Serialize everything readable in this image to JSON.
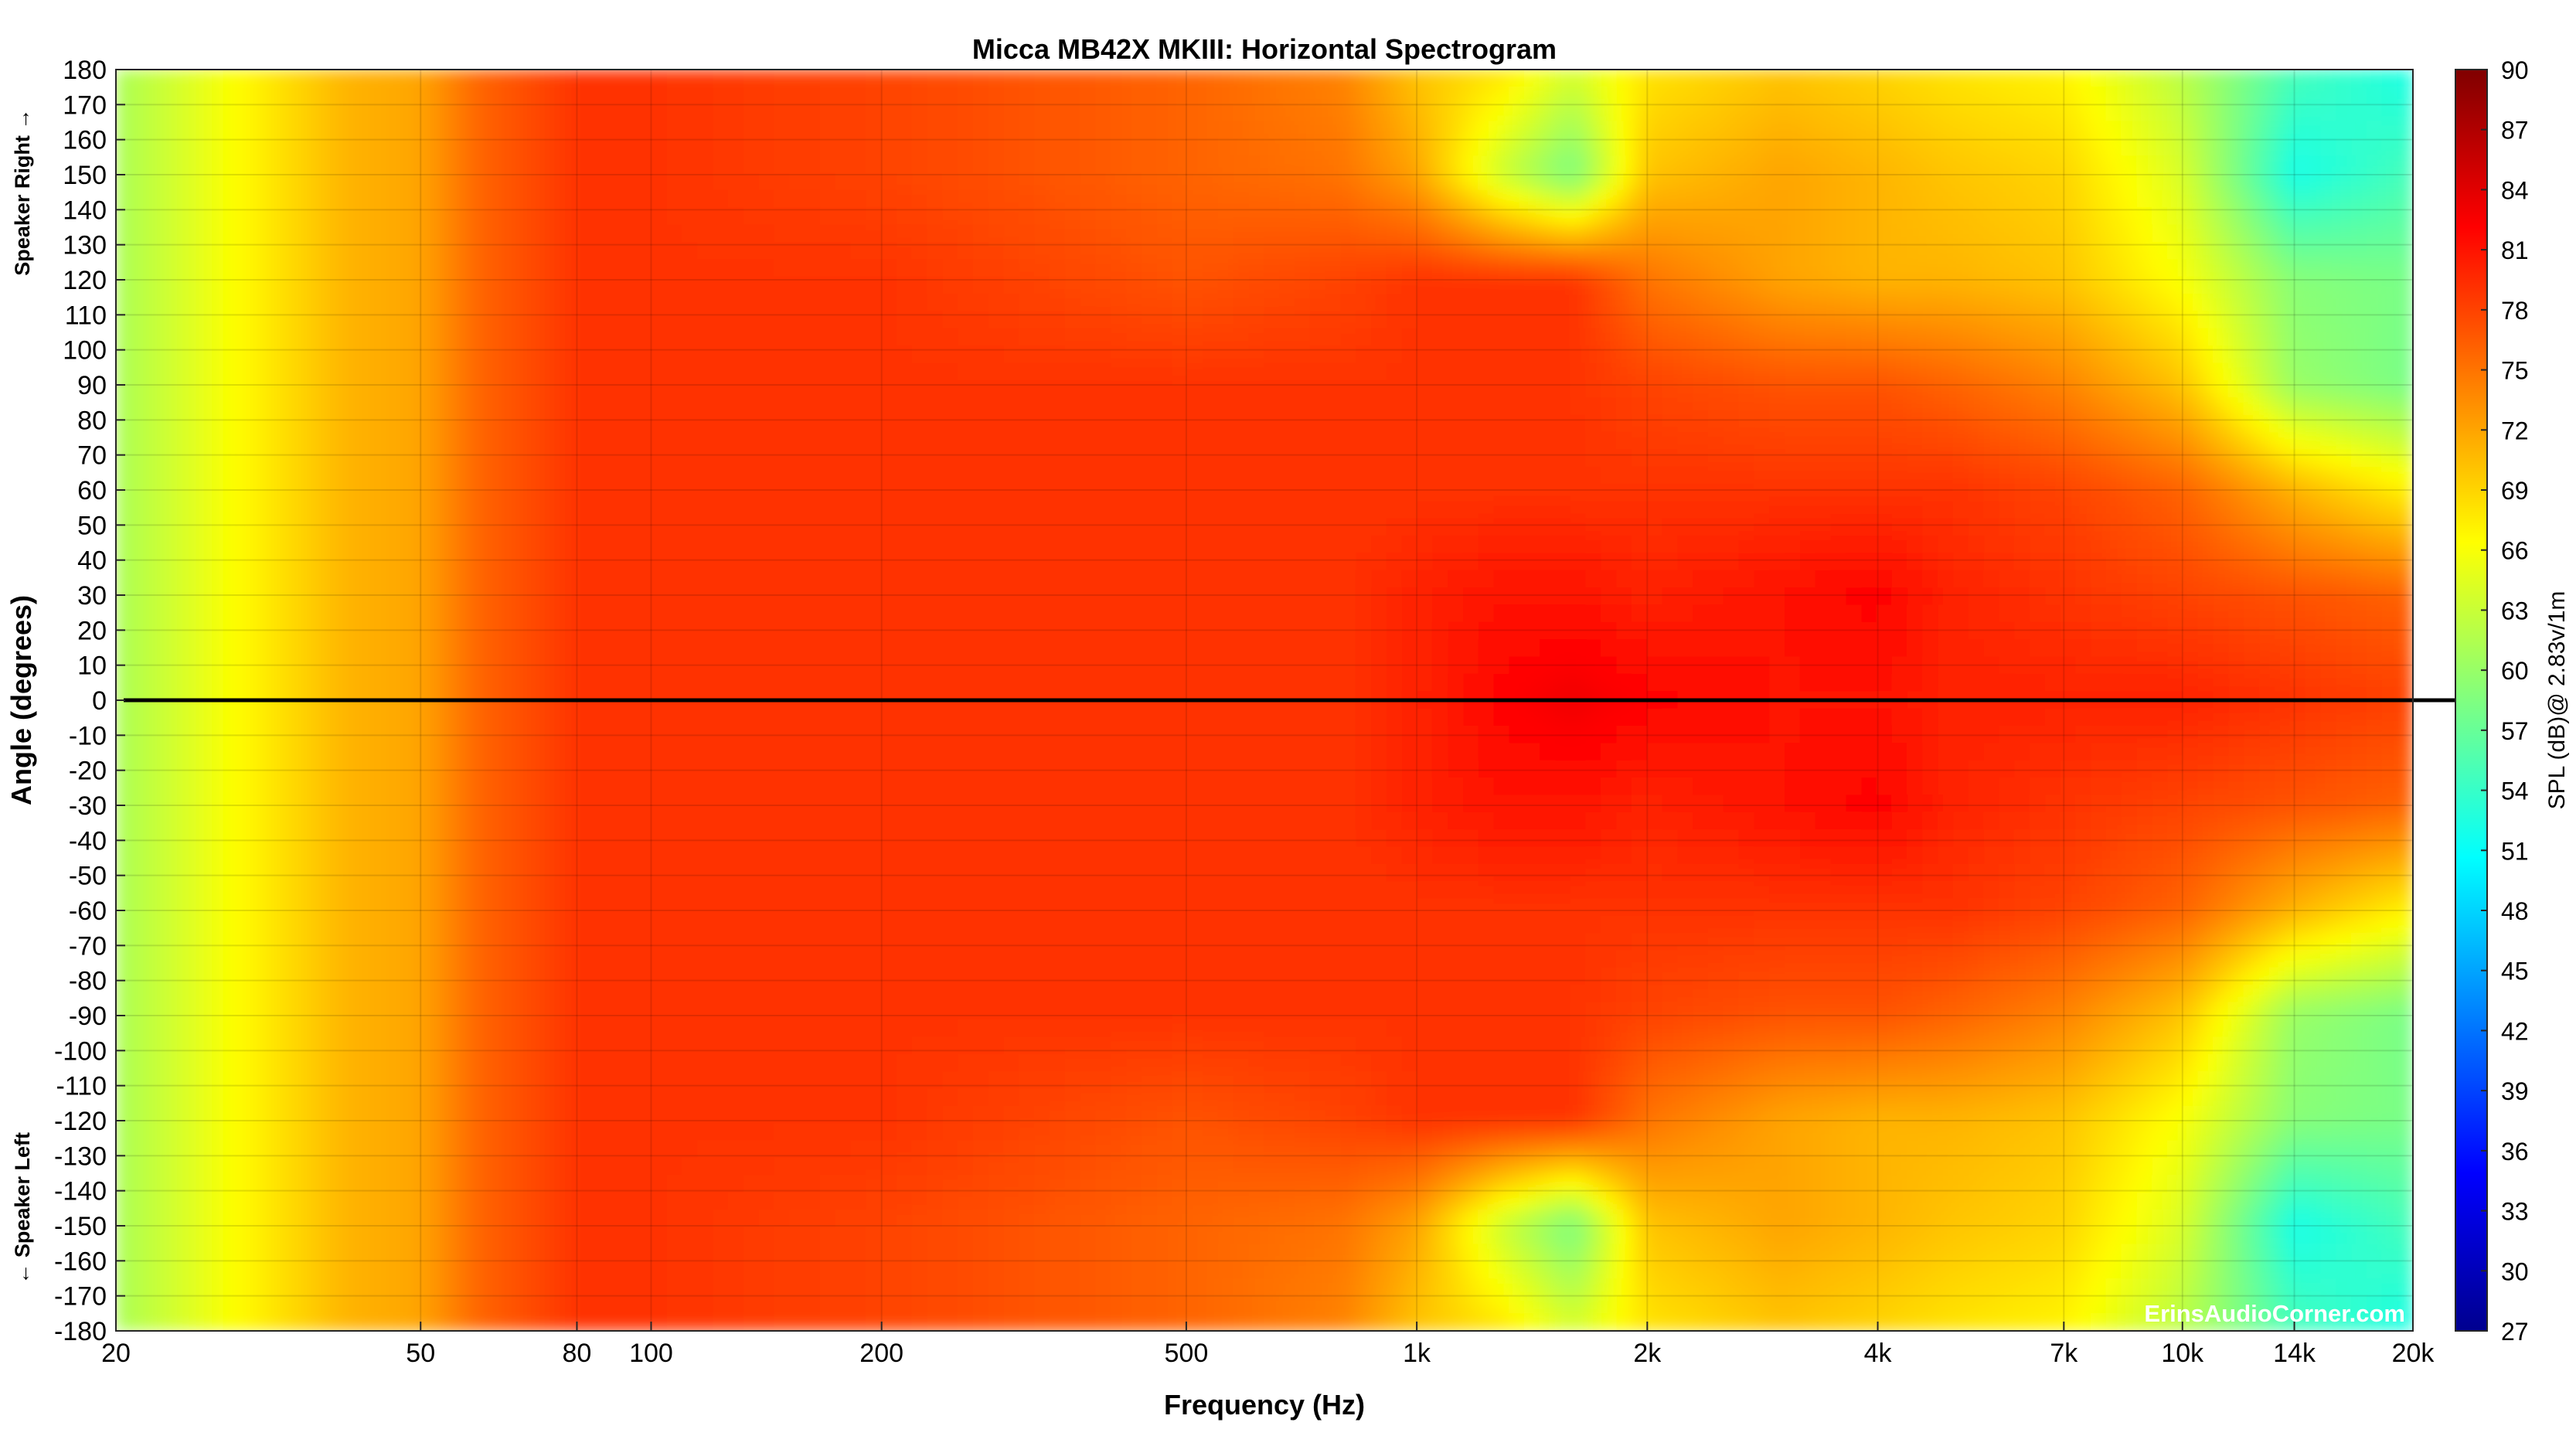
{
  "chart_data": {
    "type": "heatmap",
    "title": "Micca MB42X MKIII: Horizontal Spectrogram",
    "xlabel": "Frequency (Hz)",
    "ylabel": "Angle (degrees)",
    "ylabel_top": "Speaker Right →",
    "ylabel_bottom": "← Speaker Left",
    "colorbar_label": "SPL (dB)@ 2.83v/1m",
    "watermark": "ErinsAudioCorner.com",
    "x_scale": "log",
    "xlim": [
      20,
      20000
    ],
    "ylim": [
      -180,
      180
    ],
    "zlim": [
      27,
      90
    ],
    "x_ticks": [
      {
        "value": 20,
        "label": "20"
      },
      {
        "value": 50,
        "label": "50"
      },
      {
        "value": 80,
        "label": "80"
      },
      {
        "value": 100,
        "label": "100"
      },
      {
        "value": 200,
        "label": "200"
      },
      {
        "value": 500,
        "label": "500"
      },
      {
        "value": 1000,
        "label": "1k"
      },
      {
        "value": 2000,
        "label": "2k"
      },
      {
        "value": 4000,
        "label": "4k"
      },
      {
        "value": 7000,
        "label": "7k"
      },
      {
        "value": 10000,
        "label": "10k"
      },
      {
        "value": 14000,
        "label": "14k"
      },
      {
        "value": 20000,
        "label": "20k"
      }
    ],
    "y_ticks": [
      180,
      170,
      160,
      150,
      140,
      130,
      120,
      110,
      100,
      90,
      80,
      70,
      60,
      50,
      40,
      30,
      20,
      10,
      0,
      -10,
      -20,
      -30,
      -40,
      -50,
      -60,
      -70,
      -80,
      -90,
      -100,
      -110,
      -120,
      -130,
      -140,
      -150,
      -160,
      -170,
      -180
    ],
    "colorbar_ticks": [
      90,
      87,
      84,
      81,
      78,
      75,
      72,
      69,
      66,
      63,
      60,
      57,
      54,
      51,
      48,
      45,
      42,
      39,
      36,
      33,
      30,
      27
    ],
    "reference_line_angle": 0,
    "grid": true,
    "colormap": "jet",
    "spl_approx": {
      "freqs_hz": [
        20,
        30,
        40,
        50,
        60,
        80,
        100,
        200,
        500,
        800,
        1000,
        1300,
        1600,
        2000,
        3000,
        4000,
        5000,
        7000,
        10000,
        14000,
        20000
      ],
      "angles_deg": [
        0,
        30,
        60,
        90,
        120,
        150,
        180
      ],
      "spl_db": [
        [
          61,
          67,
          71,
          72,
          76,
          79,
          79,
          79,
          79,
          79,
          80,
          82,
          83,
          82,
          81,
          81,
          80,
          80,
          80,
          79,
          78
        ],
        [
          61,
          67,
          71,
          72,
          76,
          79,
          79,
          79,
          79,
          79,
          80,
          81,
          81,
          80,
          81,
          82,
          80,
          79,
          78,
          77,
          76
        ],
        [
          61,
          67,
          71,
          72,
          76,
          79,
          79,
          79,
          79,
          79,
          79,
          79,
          79,
          79,
          79,
          79,
          79,
          78,
          76,
          71,
          67
        ],
        [
          61,
          67,
          71,
          72,
          76,
          79,
          79,
          79,
          79,
          79,
          79,
          79,
          79,
          78,
          77,
          77,
          76,
          74,
          70,
          60,
          58
        ],
        [
          61,
          67,
          71,
          72,
          76,
          79,
          79,
          79,
          77,
          78,
          79,
          79,
          79,
          75,
          72,
          71,
          71,
          70,
          66,
          59,
          58
        ],
        [
          61,
          67,
          71,
          72,
          76,
          79,
          79,
          78,
          76,
          75,
          72,
          63,
          58,
          70,
          72,
          71,
          70,
          69,
          64,
          52,
          55
        ],
        [
          61,
          67,
          71,
          72,
          76,
          79,
          79,
          78,
          76,
          74,
          70,
          68,
          64,
          68,
          70,
          69,
          68,
          67,
          62,
          55,
          52
        ]
      ]
    }
  }
}
